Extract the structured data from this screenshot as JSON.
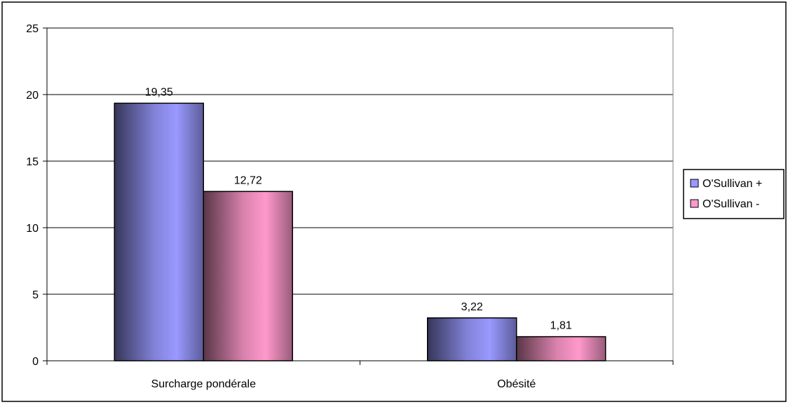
{
  "chart_data": {
    "type": "bar",
    "categories": [
      "Surcharge pondérale",
      "Obésité"
    ],
    "series": [
      {
        "name": "O'Sullivan +",
        "values": [
          19.35,
          3.22
        ],
        "labels": [
          "19,35",
          "3,22"
        ],
        "color": "#9999ff"
      },
      {
        "name": "O'Sullivan -",
        "values": [
          12.72,
          1.81
        ],
        "labels": [
          "12,72",
          "1,81"
        ],
        "color": "#ff99cc"
      }
    ],
    "ylim": [
      0,
      25
    ],
    "yticks": [
      0,
      5,
      10,
      15,
      20,
      25
    ],
    "grid": true,
    "legend_position": "right"
  }
}
